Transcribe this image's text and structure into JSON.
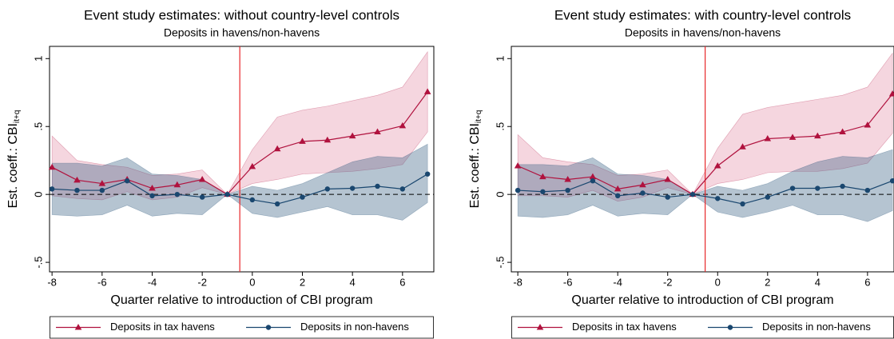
{
  "chart_data": [
    {
      "type": "line",
      "title": "Event study estimates: without country-level controls",
      "subtitle": "Deposits in havens/non-havens",
      "xlabel": "Quarter relative to introduction of CBI program",
      "ylabel": "Est. coeff.: CBI",
      "ylabel_sub": "it+q",
      "x": [
        -8,
        -7,
        -6,
        -5,
        -4,
        -3,
        -2,
        -1,
        0,
        1,
        2,
        3,
        4,
        5,
        6,
        7
      ],
      "series": [
        {
          "name": "Deposits in tax havens",
          "color": "#b0123e",
          "band_color": "rgba(222,120,150,0.3)",
          "marker": "triangle",
          "values": [
            0.2,
            0.105,
            0.08,
            0.11,
            0.045,
            0.07,
            0.11,
            0,
            0.205,
            0.335,
            0.39,
            0.4,
            0.43,
            0.46,
            0.505,
            0.755
          ],
          "upper": [
            0.43,
            0.25,
            0.22,
            0.2,
            0.14,
            0.15,
            0.18,
            0,
            0.33,
            0.57,
            0.62,
            0.65,
            0.69,
            0.73,
            0.79,
            1.05
          ],
          "lower": [
            -0.01,
            -0.03,
            -0.04,
            0.02,
            -0.04,
            -0.02,
            0.05,
            0,
            0.08,
            0.11,
            0.15,
            0.16,
            0.17,
            0.19,
            0.22,
            0.46
          ]
        },
        {
          "name": "Deposits in non-havens",
          "color": "#1a476f",
          "band_color": "rgba(60,100,135,0.38)",
          "marker": "circle",
          "values": [
            0.04,
            0.03,
            0.03,
            0.1,
            -0.01,
            0,
            -0.02,
            0,
            -0.04,
            -0.07,
            -0.02,
            0.04,
            0.045,
            0.06,
            0.04,
            0.15
          ],
          "upper": [
            0.23,
            0.23,
            0.21,
            0.27,
            0.15,
            0.14,
            0.11,
            0,
            0.06,
            0.03,
            0.08,
            0.16,
            0.24,
            0.28,
            0.27,
            0.37
          ],
          "lower": [
            -0.15,
            -0.16,
            -0.15,
            -0.08,
            -0.16,
            -0.14,
            -0.15,
            0,
            -0.14,
            -0.17,
            -0.13,
            -0.09,
            -0.15,
            -0.15,
            -0.19,
            -0.06
          ]
        }
      ],
      "xlim": [
        -8.1,
        7.25
      ],
      "ylim": [
        -0.57,
        1.09
      ],
      "xticks": [
        -8,
        -6,
        -4,
        -2,
        0,
        2,
        4,
        6
      ],
      "yticks": [
        {
          "value": -0.5,
          "label": "-.5"
        },
        0,
        {
          "value": 0.5,
          "label": ".5"
        },
        1
      ],
      "vline": -0.5,
      "vline_color": "#e8262a",
      "hline": 0,
      "legend": "bottom"
    },
    {
      "type": "line",
      "title": "Event study estimates: with country-level controls",
      "subtitle": "Deposits in havens/non-havens",
      "xlabel": "Quarter relative to introduction of CBI program",
      "ylabel": "Est. coeff.: CBI",
      "ylabel_sub": "it+q",
      "x": [
        -8,
        -7,
        -6,
        -5,
        -4,
        -3,
        -2,
        -1,
        0,
        1,
        2,
        3,
        4,
        5,
        6,
        7
      ],
      "series": [
        {
          "name": "Deposits in tax havens",
          "color": "#b0123e",
          "band_color": "rgba(222,120,150,0.3)",
          "marker": "triangle",
          "values": [
            0.21,
            0.13,
            0.11,
            0.13,
            0.04,
            0.07,
            0.11,
            0,
            0.21,
            0.35,
            0.41,
            0.42,
            0.43,
            0.46,
            0.51,
            0.74
          ],
          "upper": [
            0.44,
            0.27,
            0.24,
            0.22,
            0.14,
            0.15,
            0.18,
            0,
            0.34,
            0.59,
            0.64,
            0.67,
            0.7,
            0.73,
            0.79,
            1.04
          ],
          "lower": [
            -0.01,
            -0.01,
            -0.02,
            0.03,
            -0.05,
            -0.02,
            0.05,
            0,
            0.08,
            0.11,
            0.16,
            0.17,
            0.17,
            0.19,
            0.23,
            0.45
          ]
        },
        {
          "name": "Deposits in non-havens",
          "color": "#1a476f",
          "band_color": "rgba(60,100,135,0.38)",
          "marker": "circle",
          "values": [
            0.03,
            0.02,
            0.03,
            0.1,
            -0.01,
            0.01,
            -0.02,
            0,
            -0.03,
            -0.07,
            -0.02,
            0.045,
            0.045,
            0.06,
            0.03,
            0.1
          ],
          "upper": [
            0.22,
            0.22,
            0.21,
            0.27,
            0.15,
            0.14,
            0.11,
            0,
            0.06,
            0.03,
            0.08,
            0.17,
            0.24,
            0.28,
            0.27,
            0.33
          ],
          "lower": [
            -0.16,
            -0.17,
            -0.15,
            -0.08,
            -0.16,
            -0.14,
            -0.15,
            0,
            -0.13,
            -0.17,
            -0.13,
            -0.08,
            -0.15,
            -0.15,
            -0.2,
            -0.12
          ]
        }
      ],
      "xlim": [
        -8.26,
        7.06
      ],
      "ylim": [
        -0.57,
        1.09
      ],
      "xticks": [
        -8,
        -6,
        -4,
        -2,
        0,
        2,
        4,
        6
      ],
      "yticks": [
        {
          "value": -0.5,
          "label": "-.5"
        },
        0,
        {
          "value": 0.5,
          "label": ".5"
        },
        1
      ],
      "vline": -0.5,
      "vline_color": "#e8262a",
      "hline": 0,
      "legend": "bottom"
    }
  ]
}
